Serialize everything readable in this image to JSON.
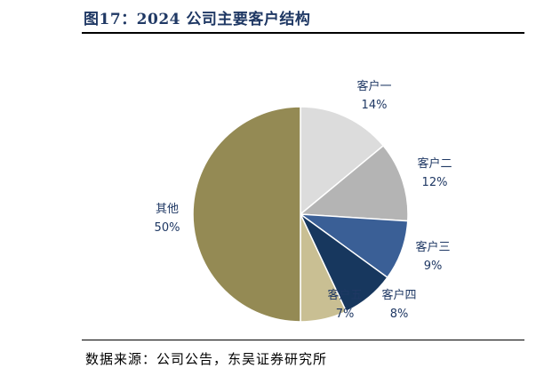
{
  "header": {
    "title": "图17：2024 公司主要客户结构"
  },
  "footer": {
    "source": "数据来源：公司公告，东吴证券研究所"
  },
  "chart_data": {
    "type": "pie",
    "title": "",
    "slices": [
      {
        "label": "客户一",
        "value": 14,
        "display": "14%",
        "color": "#dcdcdc"
      },
      {
        "label": "客户二",
        "value": 12,
        "display": "12%",
        "color": "#b4b4b4"
      },
      {
        "label": "客户三",
        "value": 9,
        "display": "9%",
        "color": "#3a5f96"
      },
      {
        "label": "客户四",
        "value": 8,
        "display": "8%",
        "color": "#17375e"
      },
      {
        "label": "客户五",
        "value": 7,
        "display": "7%",
        "color": "#c9bf93"
      },
      {
        "label": "其他",
        "value": 50,
        "display": "50%",
        "color": "#948a54"
      }
    ]
  }
}
